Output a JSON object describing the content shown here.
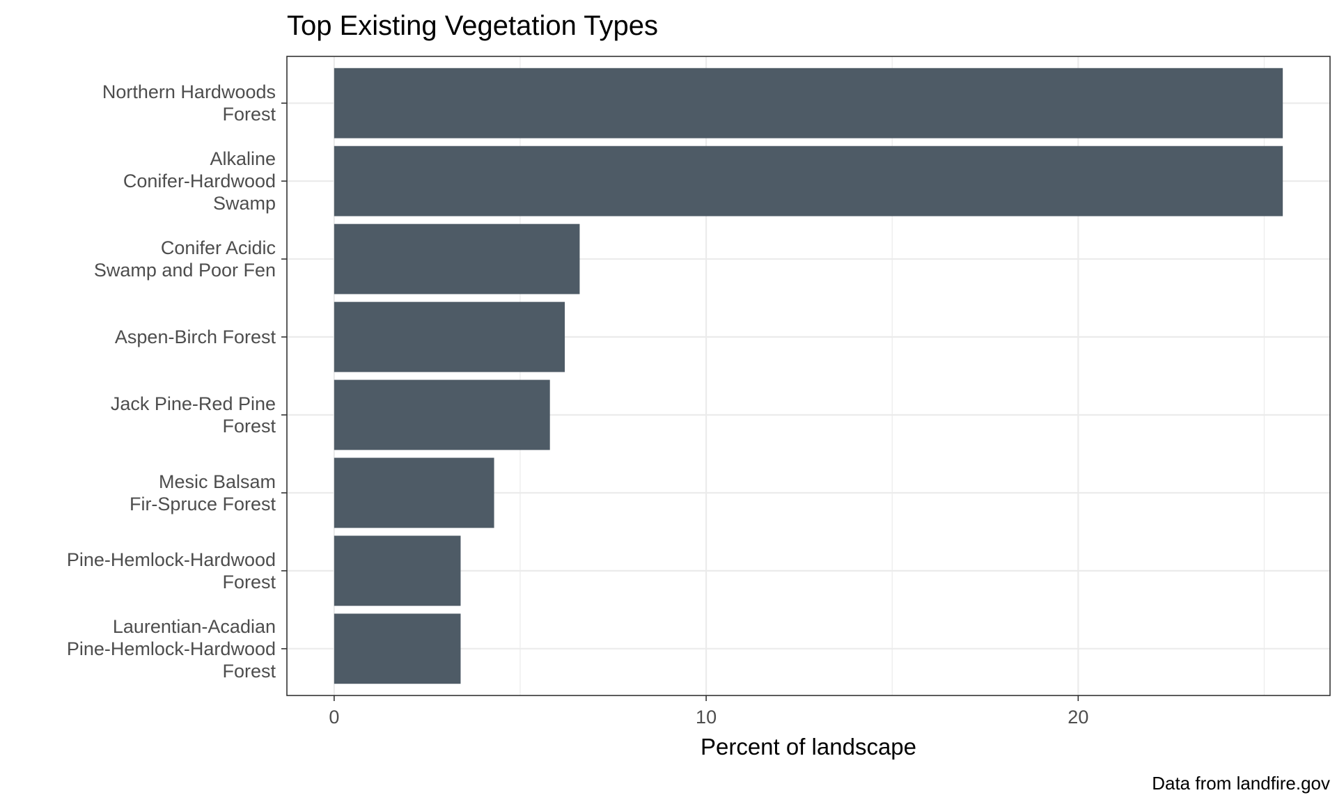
{
  "chart_data": {
    "type": "bar",
    "orientation": "horizontal",
    "title": "Top Existing Vegetation Types",
    "xlabel": "Percent of landscape",
    "ylabel": "",
    "caption": "Data from landfire.gov",
    "categories": [
      "Northern Hardwoods Forest",
      "Alkaline Conifer-Hardwood Swamp",
      "Conifer Acidic Swamp and Poor Fen",
      "Aspen-Birch Forest",
      "Jack Pine-Red Pine Forest",
      "Mesic Balsam Fir-Spruce Forest",
      "Pine-Hemlock-Hardwood Forest",
      "Laurentian-Acadian Pine-Hemlock-Hardwood Forest"
    ],
    "category_label_lines": [
      [
        "Northern Hardwoods",
        "Forest"
      ],
      [
        "Alkaline",
        "Conifer-Hardwood",
        "Swamp"
      ],
      [
        "Conifer Acidic",
        "Swamp and Poor Fen"
      ],
      [
        "Aspen-Birch Forest"
      ],
      [
        "Jack Pine-Red Pine",
        "Forest"
      ],
      [
        "Mesic Balsam",
        "Fir-Spruce Forest"
      ],
      [
        "Pine-Hemlock-Hardwood",
        "Forest"
      ],
      [
        "Laurentian-Acadian",
        "Pine-Hemlock-Hardwood",
        "Forest"
      ]
    ],
    "values": [
      25.5,
      25.5,
      6.6,
      6.2,
      5.8,
      4.3,
      3.4,
      3.4
    ],
    "xlim": [
      -1.27,
      26.77
    ],
    "xticks": [
      0,
      10,
      20
    ],
    "bar_color": "#4e5b66",
    "grid": true,
    "legend": "none"
  }
}
